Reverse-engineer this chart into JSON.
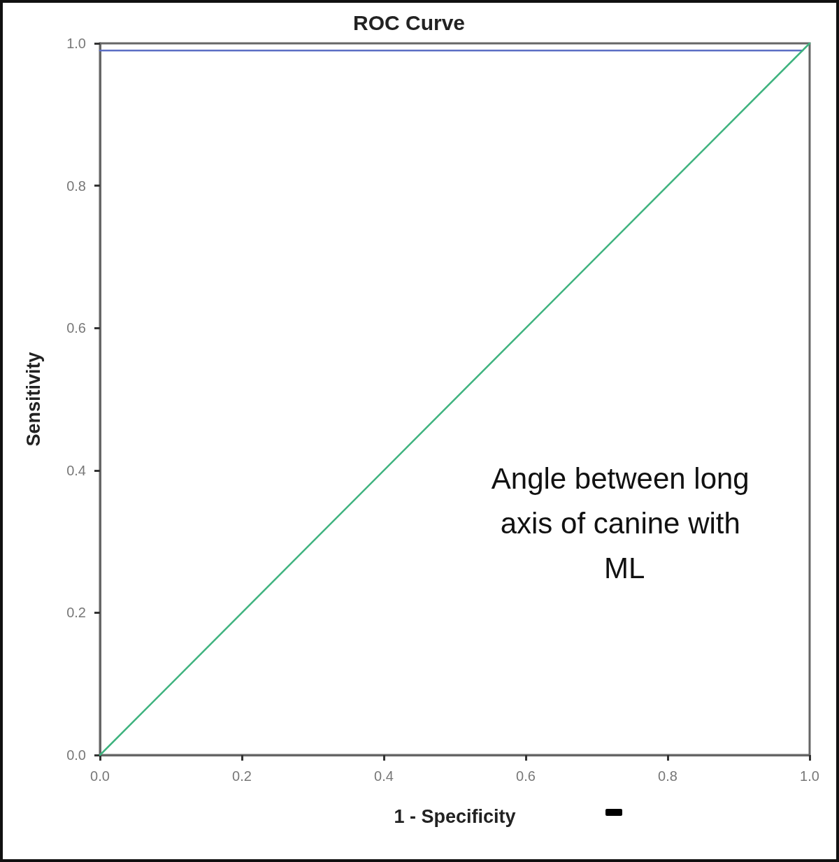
{
  "chart_data": {
    "type": "line",
    "title": "ROC Curve",
    "xlabel": "1 - Specificity",
    "ylabel": "Sensitivity",
    "annotations": [
      "Angle between long axis of canine with ML"
    ],
    "series": [
      {
        "color": "#5b6ec4",
        "x": [
          0,
          0.99
        ],
        "values": [
          0.99,
          0.99
        ]
      },
      {
        "color": "#3fb37f",
        "x": [
          0,
          1
        ],
        "values": [
          0,
          1
        ]
      }
    ],
    "xlim": [
      0,
      1
    ],
    "ylim": [
      0,
      1
    ],
    "xticks": [
      {
        "value": 0,
        "label": "0.0"
      },
      {
        "value": 0.2,
        "label": "0.2"
      },
      {
        "value": 0.4,
        "label": "0.4"
      },
      {
        "value": 0.6,
        "label": "0.6"
      },
      {
        "value": 0.8,
        "label": "0.8"
      },
      {
        "value": 1,
        "label": "1.0"
      }
    ],
    "yticks": [
      {
        "value": 0,
        "label": "0.0"
      },
      {
        "value": 0.2,
        "label": "0.2"
      },
      {
        "value": 0.4,
        "label": "0.4"
      },
      {
        "value": 0.6,
        "label": "0.6"
      },
      {
        "value": 0.8,
        "label": "0.8"
      },
      {
        "value": 1,
        "label": "1.0"
      }
    ],
    "marker": "none",
    "line_style": "solid"
  }
}
